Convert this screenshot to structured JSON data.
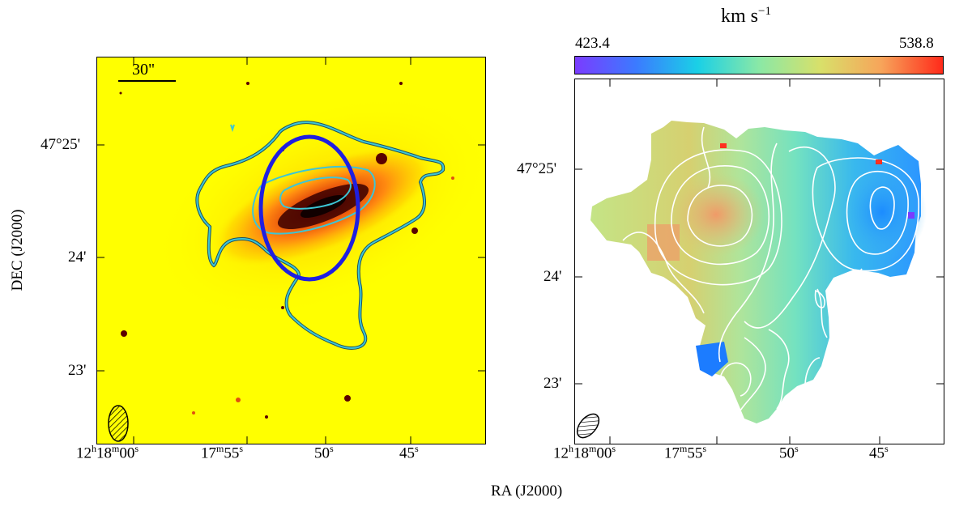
{
  "left_panel": {
    "scale_bar_label": "30\"",
    "dec_ticks": [
      "47°25'",
      "24'",
      "23'"
    ],
    "ra_ticks": [
      {
        "h": "12",
        "hs": "h",
        "m": "18",
        "ms": "m",
        "s": "00",
        "ss": "s"
      },
      {
        "m": "17",
        "ms": "m",
        "s": "55",
        "ss": "s"
      },
      {
        "s": "50",
        "ss": "s"
      },
      {
        "s": "45",
        "ss": "s"
      }
    ],
    "ylabel": "DEC (J2000)"
  },
  "right_panel": {
    "colorbar": {
      "unit_label": "km s",
      "unit_exponent": "−1",
      "min_label": "423.4",
      "max_label": "538.8",
      "colors": [
        "#7a3cff",
        "#3b7bff",
        "#1ad0e6",
        "#8ae8a6",
        "#d8e06a",
        "#f7a45a",
        "#ff2a1a"
      ]
    },
    "dec_ticks": [
      "47°25'",
      "24'",
      "23'"
    ],
    "ra_ticks": [
      {
        "h": "12",
        "hs": "h",
        "m": "18",
        "ms": "m",
        "s": "00",
        "ss": "s"
      },
      {
        "m": "17",
        "ms": "m",
        "s": "55",
        "ss": "s"
      },
      {
        "s": "50",
        "ss": "s"
      },
      {
        "s": "45",
        "ss": "s"
      }
    ]
  },
  "xlabel": "RA (J2000)",
  "colors": {
    "background_optical": "#ffff00",
    "contour_cyan": "#3cc6d6",
    "ellipse_blue": "#1f1fe0",
    "contour_white": "#ffffff"
  }
}
